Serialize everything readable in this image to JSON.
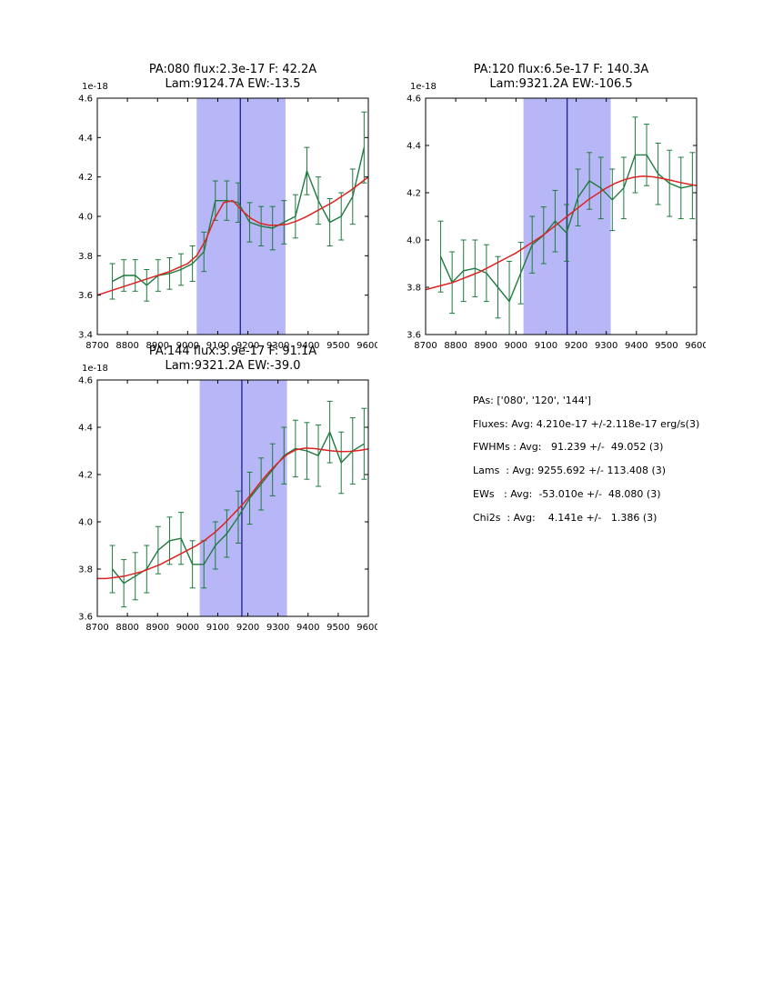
{
  "palette": {
    "spectrum": "#1f7a3f",
    "fit": "#dd2222",
    "band": "#b7b7f7",
    "vline": "#1c1c96",
    "axes": "#000000",
    "background": "#ffffff"
  },
  "stats": {
    "lines": [
      "PAs: ['080', '120', '144']",
      "Fluxes: Avg: 4.210e-17 +/-2.118e-17 erg/s(3)",
      "FWHMs : Avg:   91.239 +/-  49.052 (3)",
      "Lams  : Avg: 9255.692 +/- 113.408 (3)",
      "EWs   : Avg:  -53.010e +/-  48.080 (3)",
      "Chi2s  : Avg:    4.141e +/-   1.386 (3)"
    ]
  },
  "chart_data": [
    {
      "type": "line",
      "title1": "PA:080 flux:2.3e-17 F: 42.2A",
      "title2": "Lam:9124.7A EW:-13.5",
      "offset": "1e-18",
      "xlim": [
        8700,
        9600
      ],
      "ylim": [
        3.4,
        4.6
      ],
      "xticks": [
        8700,
        8800,
        8900,
        9000,
        9100,
        9200,
        9300,
        9400,
        9500,
        9600
      ],
      "yticks": [
        3.4,
        3.6,
        3.8,
        4.0,
        4.2,
        4.4,
        4.6
      ],
      "band": [
        9030,
        9325
      ],
      "vline": 9175,
      "series": [
        {
          "name": "spectrum",
          "x": [
            8750,
            8788,
            8826,
            8864,
            8902,
            8940,
            8978,
            9016,
            9054,
            9092,
            9130,
            9168,
            9206,
            9244,
            9282,
            9320,
            9358,
            9396,
            9434,
            9472,
            9510,
            9548,
            9586
          ],
          "y": [
            3.67,
            3.7,
            3.7,
            3.65,
            3.7,
            3.71,
            3.73,
            3.76,
            3.82,
            4.08,
            4.08,
            4.07,
            3.97,
            3.95,
            3.94,
            3.97,
            4.0,
            4.23,
            4.08,
            3.97,
            4.0,
            4.1,
            4.35
          ],
          "yerr": [
            0.09,
            0.08,
            0.08,
            0.08,
            0.08,
            0.08,
            0.08,
            0.09,
            0.1,
            0.1,
            0.1,
            0.1,
            0.1,
            0.1,
            0.11,
            0.11,
            0.11,
            0.12,
            0.12,
            0.12,
            0.12,
            0.14,
            0.18
          ]
        },
        {
          "name": "fit",
          "x": [
            8700,
            8730,
            8760,
            8790,
            8820,
            8850,
            8880,
            8910,
            8940,
            8970,
            9000,
            9030,
            9060,
            9090,
            9120,
            9150,
            9180,
            9210,
            9240,
            9270,
            9300,
            9330,
            9360,
            9390,
            9420,
            9450,
            9480,
            9510,
            9540,
            9570,
            9600
          ],
          "y": [
            3.6,
            3.615,
            3.63,
            3.645,
            3.66,
            3.675,
            3.69,
            3.705,
            3.72,
            3.74,
            3.76,
            3.8,
            3.88,
            3.99,
            4.07,
            4.08,
            4.03,
            3.99,
            3.965,
            3.955,
            3.955,
            3.96,
            3.975,
            3.995,
            4.02,
            4.045,
            4.07,
            4.1,
            4.13,
            4.165,
            4.2
          ]
        }
      ]
    },
    {
      "type": "line",
      "title1": "PA:120 flux:6.5e-17 F: 140.3A",
      "title2": "Lam:9321.2A EW:-106.5",
      "offset": "1e-18",
      "xlim": [
        8700,
        9600
      ],
      "ylim": [
        3.6,
        4.6
      ],
      "xticks": [
        8700,
        8800,
        8900,
        9000,
        9100,
        9200,
        9300,
        9400,
        9500,
        9600
      ],
      "yticks": [
        3.6,
        3.8,
        4.0,
        4.2,
        4.4,
        4.6
      ],
      "band": [
        9025,
        9315
      ],
      "vline": 9170,
      "series": [
        {
          "name": "spectrum",
          "x": [
            8750,
            8788,
            8826,
            8864,
            8902,
            8940,
            8978,
            9016,
            9054,
            9092,
            9130,
            9168,
            9206,
            9244,
            9282,
            9320,
            9358,
            9396,
            9434,
            9472,
            9510,
            9548,
            9586
          ],
          "y": [
            3.93,
            3.82,
            3.87,
            3.88,
            3.86,
            3.8,
            3.74,
            3.86,
            3.98,
            4.02,
            4.08,
            4.03,
            4.18,
            4.25,
            4.22,
            4.17,
            4.22,
            4.36,
            4.36,
            4.28,
            4.24,
            4.22,
            4.23
          ],
          "yerr": [
            0.15,
            0.13,
            0.13,
            0.12,
            0.12,
            0.13,
            0.17,
            0.13,
            0.12,
            0.12,
            0.13,
            0.12,
            0.12,
            0.12,
            0.13,
            0.13,
            0.13,
            0.16,
            0.13,
            0.13,
            0.14,
            0.13,
            0.14
          ]
        },
        {
          "name": "fit",
          "x": [
            8700,
            8730,
            8760,
            8790,
            8820,
            8850,
            8880,
            8910,
            8940,
            8970,
            9000,
            9030,
            9060,
            9090,
            9120,
            9150,
            9180,
            9210,
            9240,
            9270,
            9300,
            9330,
            9360,
            9390,
            9420,
            9450,
            9480,
            9510,
            9540,
            9570,
            9600
          ],
          "y": [
            3.79,
            3.8,
            3.81,
            3.82,
            3.835,
            3.85,
            3.865,
            3.885,
            3.905,
            3.925,
            3.945,
            3.97,
            3.995,
            4.02,
            4.05,
            4.08,
            4.11,
            4.14,
            4.17,
            4.195,
            4.22,
            4.24,
            4.255,
            4.265,
            4.27,
            4.268,
            4.262,
            4.254,
            4.245,
            4.237,
            4.23
          ]
        }
      ]
    },
    {
      "type": "line",
      "title1": "PA:144 flux:3.9e-17 F: 91.1A",
      "title2": "Lam:9321.2A EW:-39.0",
      "offset": "1e-18",
      "xlim": [
        8700,
        9600
      ],
      "ylim": [
        3.6,
        4.6
      ],
      "xticks": [
        8700,
        8800,
        8900,
        9000,
        9100,
        9200,
        9300,
        9400,
        9500,
        9600
      ],
      "yticks": [
        3.6,
        3.8,
        4.0,
        4.2,
        4.4,
        4.6
      ],
      "band": [
        9040,
        9330
      ],
      "vline": 9180,
      "series": [
        {
          "name": "spectrum",
          "x": [
            8750,
            8788,
            8826,
            8864,
            8902,
            8940,
            8978,
            9016,
            9054,
            9092,
            9130,
            9168,
            9206,
            9244,
            9282,
            9320,
            9358,
            9396,
            9434,
            9472,
            9510,
            9548,
            9586
          ],
          "y": [
            3.8,
            3.74,
            3.77,
            3.8,
            3.88,
            3.92,
            3.93,
            3.82,
            3.82,
            3.9,
            3.95,
            4.02,
            4.1,
            4.16,
            4.22,
            4.28,
            4.31,
            4.3,
            4.28,
            4.38,
            4.25,
            4.3,
            4.33
          ],
          "yerr": [
            0.1,
            0.1,
            0.1,
            0.1,
            0.1,
            0.1,
            0.11,
            0.1,
            0.1,
            0.1,
            0.1,
            0.11,
            0.11,
            0.11,
            0.11,
            0.12,
            0.12,
            0.12,
            0.13,
            0.13,
            0.13,
            0.14,
            0.15
          ]
        },
        {
          "name": "fit",
          "x": [
            8700,
            8730,
            8760,
            8790,
            8820,
            8850,
            8880,
            8910,
            8940,
            8970,
            9000,
            9030,
            9060,
            9090,
            9120,
            9150,
            9180,
            9210,
            9240,
            9270,
            9300,
            9330,
            9360,
            9390,
            9420,
            9450,
            9480,
            9510,
            9540,
            9570,
            9600
          ],
          "y": [
            3.76,
            3.76,
            3.765,
            3.77,
            3.78,
            3.79,
            3.805,
            3.82,
            3.84,
            3.86,
            3.88,
            3.9,
            3.925,
            3.955,
            3.99,
            4.03,
            4.07,
            4.115,
            4.165,
            4.21,
            4.25,
            4.285,
            4.305,
            4.312,
            4.31,
            4.305,
            4.3,
            4.297,
            4.298,
            4.302,
            4.308
          ]
        }
      ]
    }
  ]
}
